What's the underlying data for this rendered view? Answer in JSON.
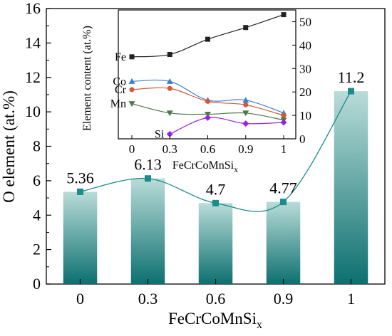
{
  "chart_data": [
    {
      "type": "bar",
      "categories": [
        "0",
        "0.3",
        "0.6",
        "0.9",
        "1"
      ],
      "values": [
        5.36,
        6.13,
        4.7,
        4.77,
        11.2
      ],
      "data_labels": [
        "5.36",
        "6.13",
        "4.7",
        "4.77",
        "11.2"
      ],
      "title": "",
      "xlabel": {
        "base": "FeCrCoMnSi",
        "sub": "x"
      },
      "ylabel": "O element (at.%)",
      "ylim": [
        0,
        16
      ],
      "yticks": [
        "0",
        "2",
        "4",
        "6",
        "8",
        "10",
        "12",
        "14",
        "16"
      ],
      "grid": false,
      "overlay": "smooth line with square markers through bar tops",
      "colors": {
        "bar_top": "#b9dcd8",
        "bar_bottom": "#0d7070",
        "line": "#1a8c8c",
        "marker": "#1a8c8c"
      }
    },
    {
      "type": "line",
      "categories": [
        "0",
        "0.3",
        "0.6",
        "0.9",
        "1"
      ],
      "title": "",
      "xlabel": {
        "base": "FeCrCoMnSi",
        "sub": "x"
      },
      "ylabel": "Element content (at.%)",
      "ylim": [
        0,
        55
      ],
      "yticks": [
        "0",
        "10",
        "20",
        "30",
        "40",
        "50"
      ],
      "grid": false,
      "series": [
        {
          "name": "Fe",
          "values": [
            35,
            36,
            42.5,
            47.5,
            53
          ],
          "color": "#222222",
          "marker": "square"
        },
        {
          "name": "Co",
          "values": [
            24.5,
            24.5,
            16.5,
            16.5,
            11
          ],
          "color": "#3b7fd0",
          "marker": "triangle-up"
        },
        {
          "name": "Cr",
          "values": [
            21,
            21.5,
            16,
            14.5,
            10
          ],
          "color": "#d4573a",
          "marker": "circle"
        },
        {
          "name": "Mn",
          "values": [
            15,
            11,
            10.5,
            11,
            8
          ],
          "color": "#4d7a4d",
          "marker": "triangle-down"
        },
        {
          "name": "Si",
          "values": [
            null,
            2,
            9,
            6.5,
            7
          ],
          "color": "#9b1fe8",
          "marker": "diamond"
        }
      ]
    }
  ]
}
